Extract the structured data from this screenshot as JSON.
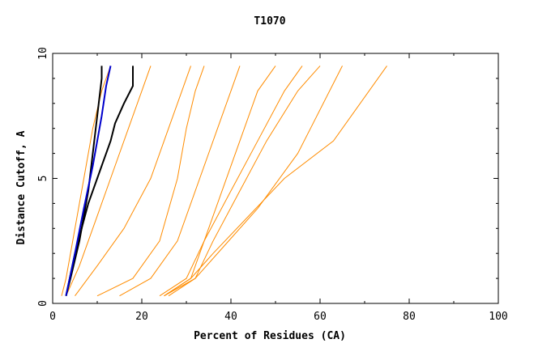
{
  "chart_data": {
    "type": "line",
    "title": "T1070",
    "xlabel": "Percent of Residues (CA)",
    "ylabel": "Distance Cutoff, A",
    "xlim": [
      0,
      100
    ],
    "ylim": [
      0,
      10
    ],
    "x_ticks": [
      0,
      20,
      40,
      60,
      80,
      100
    ],
    "y_ticks": [
      0,
      5,
      10
    ],
    "grid": false,
    "legend": "none",
    "colors": {
      "models": "#ff8c00",
      "highlight_black": "#000000",
      "highlight_blue": "#0000cc",
      "axis": "#000000"
    },
    "series": [
      {
        "color": "black",
        "x": [
          3,
          4,
          6,
          8,
          9,
          10,
          11,
          11
        ],
        "y": [
          0.3,
          1,
          2.5,
          4.5,
          6,
          7.5,
          9,
          9.5
        ]
      },
      {
        "color": "black",
        "x": [
          3,
          5,
          8,
          11,
          13,
          14,
          16,
          18,
          18
        ],
        "y": [
          0.3,
          2,
          4,
          5.5,
          6.5,
          7.2,
          8,
          8.7,
          9.5
        ]
      },
      {
        "color": "blue",
        "x": [
          3,
          5,
          7,
          9,
          11,
          12,
          13
        ],
        "y": [
          0.3,
          2,
          3.8,
          5.5,
          7.5,
          8.7,
          9.5
        ]
      },
      {
        "color": "orange",
        "x": [
          2,
          3,
          5,
          7,
          9,
          11,
          13
        ],
        "y": [
          0.3,
          1,
          3,
          5,
          7,
          8.5,
          9.5
        ]
      },
      {
        "color": "orange",
        "x": [
          3,
          6,
          10,
          14,
          17,
          20,
          22
        ],
        "y": [
          0.3,
          1.5,
          3.5,
          5.5,
          7,
          8.5,
          9.5
        ]
      },
      {
        "color": "orange",
        "x": [
          5,
          10,
          16,
          22,
          26,
          29,
          31
        ],
        "y": [
          0.3,
          1.5,
          3,
          5,
          7,
          8.5,
          9.5
        ]
      },
      {
        "color": "orange",
        "x": [
          10,
          18,
          24,
          28,
          30,
          32,
          34
        ],
        "y": [
          0.3,
          1,
          2.5,
          5,
          7,
          8.5,
          9.5
        ]
      },
      {
        "color": "orange",
        "x": [
          15,
          22,
          28,
          33,
          37,
          40,
          42
        ],
        "y": [
          0.3,
          1,
          2.5,
          5,
          7,
          8.5,
          9.5
        ]
      },
      {
        "color": "orange",
        "x": [
          25,
          31,
          34,
          38,
          42,
          46,
          50
        ],
        "y": [
          0.3,
          1,
          2.5,
          4.5,
          6.5,
          8.5,
          9.5
        ]
      },
      {
        "color": "orange",
        "x": [
          25,
          32,
          36,
          42,
          48,
          55,
          60
        ],
        "y": [
          0.3,
          1,
          2.5,
          4.5,
          6.5,
          8.5,
          9.5
        ]
      },
      {
        "color": "orange",
        "x": [
          25,
          31,
          36,
          44,
          52,
          63,
          69,
          75
        ],
        "y": [
          0.3,
          1,
          2,
          3.5,
          5,
          6.5,
          8,
          9.5
        ]
      },
      {
        "color": "orange",
        "x": [
          26,
          32,
          38,
          46,
          55,
          65
        ],
        "y": [
          0.3,
          1,
          2.2,
          3.8,
          6,
          9.5
        ]
      },
      {
        "color": "orange",
        "x": [
          24,
          30,
          34,
          40,
          46,
          52,
          56
        ],
        "y": [
          0.3,
          1,
          2.5,
          4.5,
          6.5,
          8.5,
          9.5
        ]
      }
    ]
  }
}
